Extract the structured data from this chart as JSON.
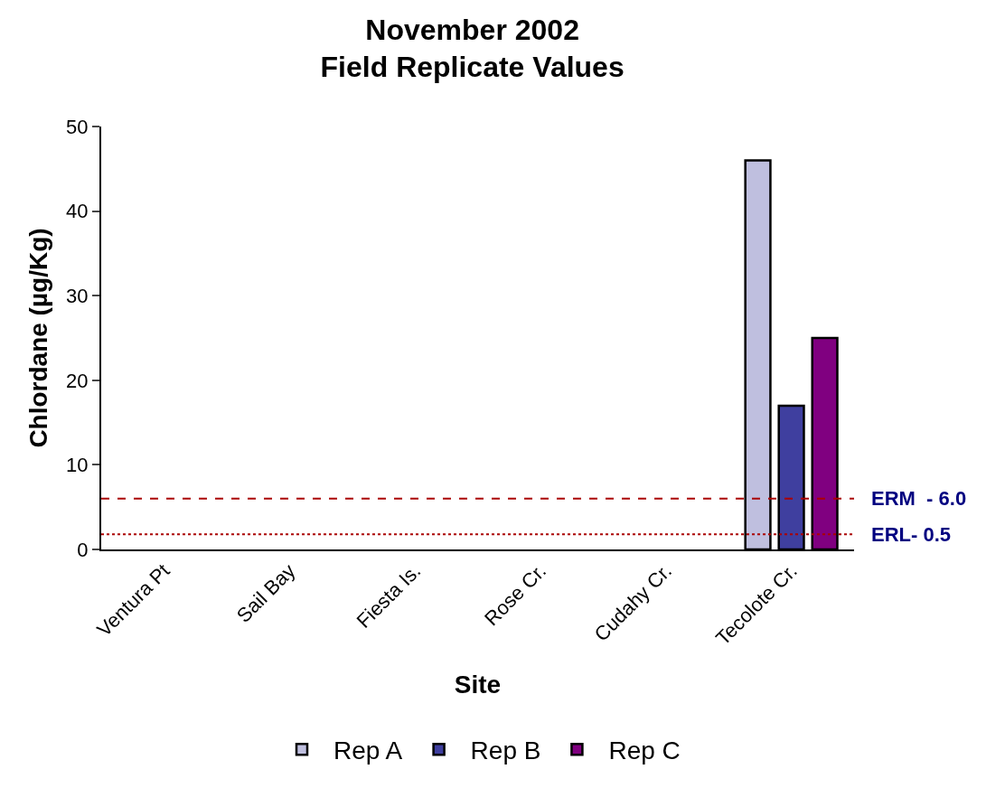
{
  "chart_data": {
    "type": "bar",
    "title": "November 2002\nField Replicate Values",
    "xlabel": "Site",
    "ylabel": "Chlordane (µg/Kg)",
    "categories": [
      "Ventura Pt",
      "Sail Bay",
      "Fiesta Is.",
      "Rose Cr.",
      "Cudahy Cr.",
      "Tecolote Cr."
    ],
    "series": [
      {
        "name": "Rep A",
        "color": "#bfbfdf",
        "values": [
          null,
          null,
          null,
          null,
          null,
          46
        ]
      },
      {
        "name": "Rep B",
        "color": "#3f3f9f",
        "values": [
          null,
          null,
          null,
          null,
          null,
          17
        ]
      },
      {
        "name": "Rep C",
        "color": "#800080",
        "values": [
          null,
          null,
          null,
          null,
          null,
          25
        ]
      }
    ],
    "ylim": [
      0,
      50
    ],
    "yticks": [
      0,
      10,
      20,
      30,
      40,
      50
    ],
    "legend": "bottom",
    "ref_lines": [
      {
        "axis": "y",
        "value": 6,
        "label": "ERM  - 6.0",
        "color": "#aa0000",
        "line_style": "dashed"
      },
      {
        "axis": "y",
        "value": 1.8,
        "label": "ERL- 0.5",
        "color": "#aa0000",
        "line_style": "dotted"
      }
    ]
  }
}
